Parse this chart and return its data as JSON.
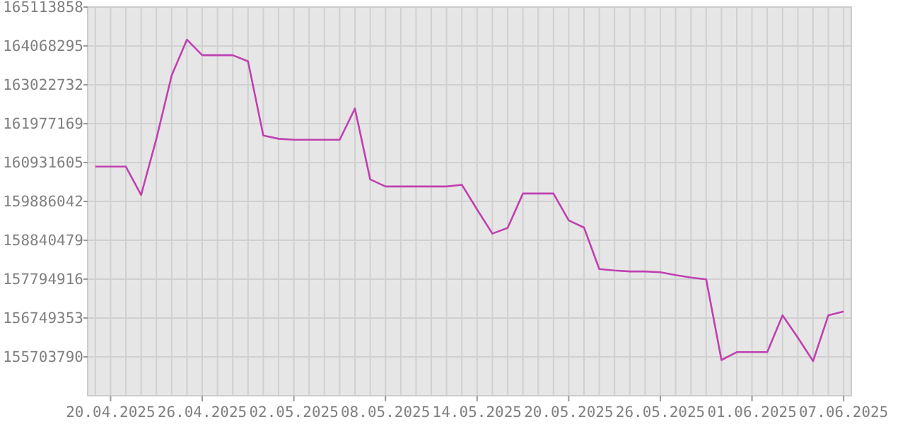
{
  "chart_data": {
    "type": "line",
    "x": [
      "2025-04-19",
      "2025-04-20",
      "2025-04-21",
      "2025-04-22",
      "2025-04-23",
      "2025-04-24",
      "2025-04-25",
      "2025-04-26",
      "2025-04-27",
      "2025-04-28",
      "2025-04-29",
      "2025-04-30",
      "2025-05-01",
      "2025-05-02",
      "2025-05-03",
      "2025-05-04",
      "2025-05-05",
      "2025-05-06",
      "2025-05-07",
      "2025-05-08",
      "2025-05-09",
      "2025-05-10",
      "2025-05-11",
      "2025-05-12",
      "2025-05-13",
      "2025-05-14",
      "2025-05-15",
      "2025-05-16",
      "2025-05-17",
      "2025-05-18",
      "2025-05-19",
      "2025-05-20",
      "2025-05-21",
      "2025-05-22",
      "2025-05-23",
      "2025-05-24",
      "2025-05-25",
      "2025-05-26",
      "2025-05-27",
      "2025-05-28",
      "2025-05-29",
      "2025-05-30",
      "2025-05-31",
      "2025-06-01",
      "2025-06-02",
      "2025-06-03",
      "2025-06-04",
      "2025-06-05",
      "2025-06-06",
      "2025-06-07"
    ],
    "series": [
      {
        "color": "#c040b0",
        "values": [
          160821000,
          160821000,
          160821000,
          160059000,
          161571000,
          163274000,
          164238000,
          163819000,
          163819000,
          163819000,
          163655000,
          161659000,
          161571000,
          161545000,
          161545000,
          161545000,
          161545000,
          162383000,
          160478000,
          160288000,
          160288000,
          160288000,
          160288000,
          160288000,
          160334000,
          159667000,
          159019000,
          159172000,
          160097000,
          160097000,
          160097000,
          159374000,
          159183000,
          158067000,
          158029000,
          158002000,
          158002000,
          157980000,
          157903000,
          157839000,
          157789000,
          155618000,
          155831000,
          155831000,
          155831000,
          156822000,
          156220000,
          155591000,
          156822000,
          156925000
        ]
      }
    ],
    "xlim": [
      "2025-04-18T12:00",
      "2025-06-07T12:00"
    ],
    "xticks": [
      {
        "value": "2025-04-20",
        "label": "20.04.2025"
      },
      {
        "value": "2025-04-26",
        "label": "26.04.2025"
      },
      {
        "value": "2025-05-02",
        "label": "02.05.2025"
      },
      {
        "value": "2025-05-08",
        "label": "08.05.2025"
      },
      {
        "value": "2025-05-14",
        "label": "14.05.2025"
      },
      {
        "value": "2025-05-20",
        "label": "20.05.2025"
      },
      {
        "value": "2025-05-26",
        "label": "26.05.2025"
      },
      {
        "value": "2025-06-01",
        "label": "01.06.2025"
      },
      {
        "value": "2025-06-07",
        "label": "07.06.2025"
      }
    ],
    "ylim": [
      154658227,
      165113858
    ],
    "yticks": [
      155703790,
      156749353,
      157794916,
      158840479,
      159886042,
      160931605,
      161977169,
      163022732,
      164068295,
      165113858
    ],
    "grid": true,
    "marker": "none",
    "line_style": "solid"
  }
}
